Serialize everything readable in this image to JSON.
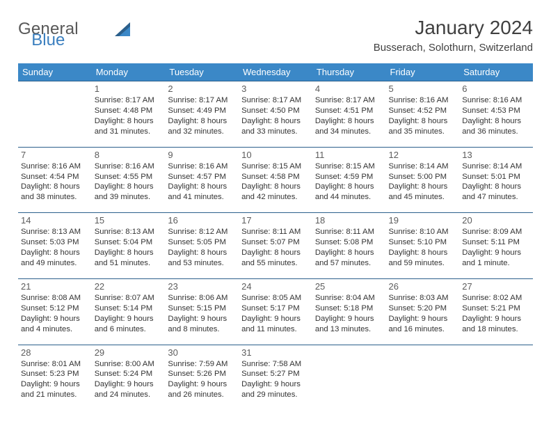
{
  "brand": {
    "first": "General",
    "second": "Blue"
  },
  "title": "January 2024",
  "location": "Busserach, Solothurn, Switzerland",
  "colors": {
    "header_bg": "#3b88c7",
    "header_fg": "#ffffff",
    "row_border": "#2b5f8b",
    "logo_gray": "#585858",
    "logo_blue": "#3b7fbf",
    "text": "#333333"
  },
  "dayHeaders": [
    "Sunday",
    "Monday",
    "Tuesday",
    "Wednesday",
    "Thursday",
    "Friday",
    "Saturday"
  ],
  "weeks": [
    [
      null,
      {
        "n": "1",
        "sr": "Sunrise: 8:17 AM",
        "ss": "Sunset: 4:48 PM",
        "d1": "Daylight: 8 hours",
        "d2": "and 31 minutes."
      },
      {
        "n": "2",
        "sr": "Sunrise: 8:17 AM",
        "ss": "Sunset: 4:49 PM",
        "d1": "Daylight: 8 hours",
        "d2": "and 32 minutes."
      },
      {
        "n": "3",
        "sr": "Sunrise: 8:17 AM",
        "ss": "Sunset: 4:50 PM",
        "d1": "Daylight: 8 hours",
        "d2": "and 33 minutes."
      },
      {
        "n": "4",
        "sr": "Sunrise: 8:17 AM",
        "ss": "Sunset: 4:51 PM",
        "d1": "Daylight: 8 hours",
        "d2": "and 34 minutes."
      },
      {
        "n": "5",
        "sr": "Sunrise: 8:16 AM",
        "ss": "Sunset: 4:52 PM",
        "d1": "Daylight: 8 hours",
        "d2": "and 35 minutes."
      },
      {
        "n": "6",
        "sr": "Sunrise: 8:16 AM",
        "ss": "Sunset: 4:53 PM",
        "d1": "Daylight: 8 hours",
        "d2": "and 36 minutes."
      }
    ],
    [
      {
        "n": "7",
        "sr": "Sunrise: 8:16 AM",
        "ss": "Sunset: 4:54 PM",
        "d1": "Daylight: 8 hours",
        "d2": "and 38 minutes."
      },
      {
        "n": "8",
        "sr": "Sunrise: 8:16 AM",
        "ss": "Sunset: 4:55 PM",
        "d1": "Daylight: 8 hours",
        "d2": "and 39 minutes."
      },
      {
        "n": "9",
        "sr": "Sunrise: 8:16 AM",
        "ss": "Sunset: 4:57 PM",
        "d1": "Daylight: 8 hours",
        "d2": "and 41 minutes."
      },
      {
        "n": "10",
        "sr": "Sunrise: 8:15 AM",
        "ss": "Sunset: 4:58 PM",
        "d1": "Daylight: 8 hours",
        "d2": "and 42 minutes."
      },
      {
        "n": "11",
        "sr": "Sunrise: 8:15 AM",
        "ss": "Sunset: 4:59 PM",
        "d1": "Daylight: 8 hours",
        "d2": "and 44 minutes."
      },
      {
        "n": "12",
        "sr": "Sunrise: 8:14 AM",
        "ss": "Sunset: 5:00 PM",
        "d1": "Daylight: 8 hours",
        "d2": "and 45 minutes."
      },
      {
        "n": "13",
        "sr": "Sunrise: 8:14 AM",
        "ss": "Sunset: 5:01 PM",
        "d1": "Daylight: 8 hours",
        "d2": "and 47 minutes."
      }
    ],
    [
      {
        "n": "14",
        "sr": "Sunrise: 8:13 AM",
        "ss": "Sunset: 5:03 PM",
        "d1": "Daylight: 8 hours",
        "d2": "and 49 minutes."
      },
      {
        "n": "15",
        "sr": "Sunrise: 8:13 AM",
        "ss": "Sunset: 5:04 PM",
        "d1": "Daylight: 8 hours",
        "d2": "and 51 minutes."
      },
      {
        "n": "16",
        "sr": "Sunrise: 8:12 AM",
        "ss": "Sunset: 5:05 PM",
        "d1": "Daylight: 8 hours",
        "d2": "and 53 minutes."
      },
      {
        "n": "17",
        "sr": "Sunrise: 8:11 AM",
        "ss": "Sunset: 5:07 PM",
        "d1": "Daylight: 8 hours",
        "d2": "and 55 minutes."
      },
      {
        "n": "18",
        "sr": "Sunrise: 8:11 AM",
        "ss": "Sunset: 5:08 PM",
        "d1": "Daylight: 8 hours",
        "d2": "and 57 minutes."
      },
      {
        "n": "19",
        "sr": "Sunrise: 8:10 AM",
        "ss": "Sunset: 5:10 PM",
        "d1": "Daylight: 8 hours",
        "d2": "and 59 minutes."
      },
      {
        "n": "20",
        "sr": "Sunrise: 8:09 AM",
        "ss": "Sunset: 5:11 PM",
        "d1": "Daylight: 9 hours",
        "d2": "and 1 minute."
      }
    ],
    [
      {
        "n": "21",
        "sr": "Sunrise: 8:08 AM",
        "ss": "Sunset: 5:12 PM",
        "d1": "Daylight: 9 hours",
        "d2": "and 4 minutes."
      },
      {
        "n": "22",
        "sr": "Sunrise: 8:07 AM",
        "ss": "Sunset: 5:14 PM",
        "d1": "Daylight: 9 hours",
        "d2": "and 6 minutes."
      },
      {
        "n": "23",
        "sr": "Sunrise: 8:06 AM",
        "ss": "Sunset: 5:15 PM",
        "d1": "Daylight: 9 hours",
        "d2": "and 8 minutes."
      },
      {
        "n": "24",
        "sr": "Sunrise: 8:05 AM",
        "ss": "Sunset: 5:17 PM",
        "d1": "Daylight: 9 hours",
        "d2": "and 11 minutes."
      },
      {
        "n": "25",
        "sr": "Sunrise: 8:04 AM",
        "ss": "Sunset: 5:18 PM",
        "d1": "Daylight: 9 hours",
        "d2": "and 13 minutes."
      },
      {
        "n": "26",
        "sr": "Sunrise: 8:03 AM",
        "ss": "Sunset: 5:20 PM",
        "d1": "Daylight: 9 hours",
        "d2": "and 16 minutes."
      },
      {
        "n": "27",
        "sr": "Sunrise: 8:02 AM",
        "ss": "Sunset: 5:21 PM",
        "d1": "Daylight: 9 hours",
        "d2": "and 18 minutes."
      }
    ],
    [
      {
        "n": "28",
        "sr": "Sunrise: 8:01 AM",
        "ss": "Sunset: 5:23 PM",
        "d1": "Daylight: 9 hours",
        "d2": "and 21 minutes."
      },
      {
        "n": "29",
        "sr": "Sunrise: 8:00 AM",
        "ss": "Sunset: 5:24 PM",
        "d1": "Daylight: 9 hours",
        "d2": "and 24 minutes."
      },
      {
        "n": "30",
        "sr": "Sunrise: 7:59 AM",
        "ss": "Sunset: 5:26 PM",
        "d1": "Daylight: 9 hours",
        "d2": "and 26 minutes."
      },
      {
        "n": "31",
        "sr": "Sunrise: 7:58 AM",
        "ss": "Sunset: 5:27 PM",
        "d1": "Daylight: 9 hours",
        "d2": "and 29 minutes."
      },
      null,
      null,
      null
    ]
  ]
}
